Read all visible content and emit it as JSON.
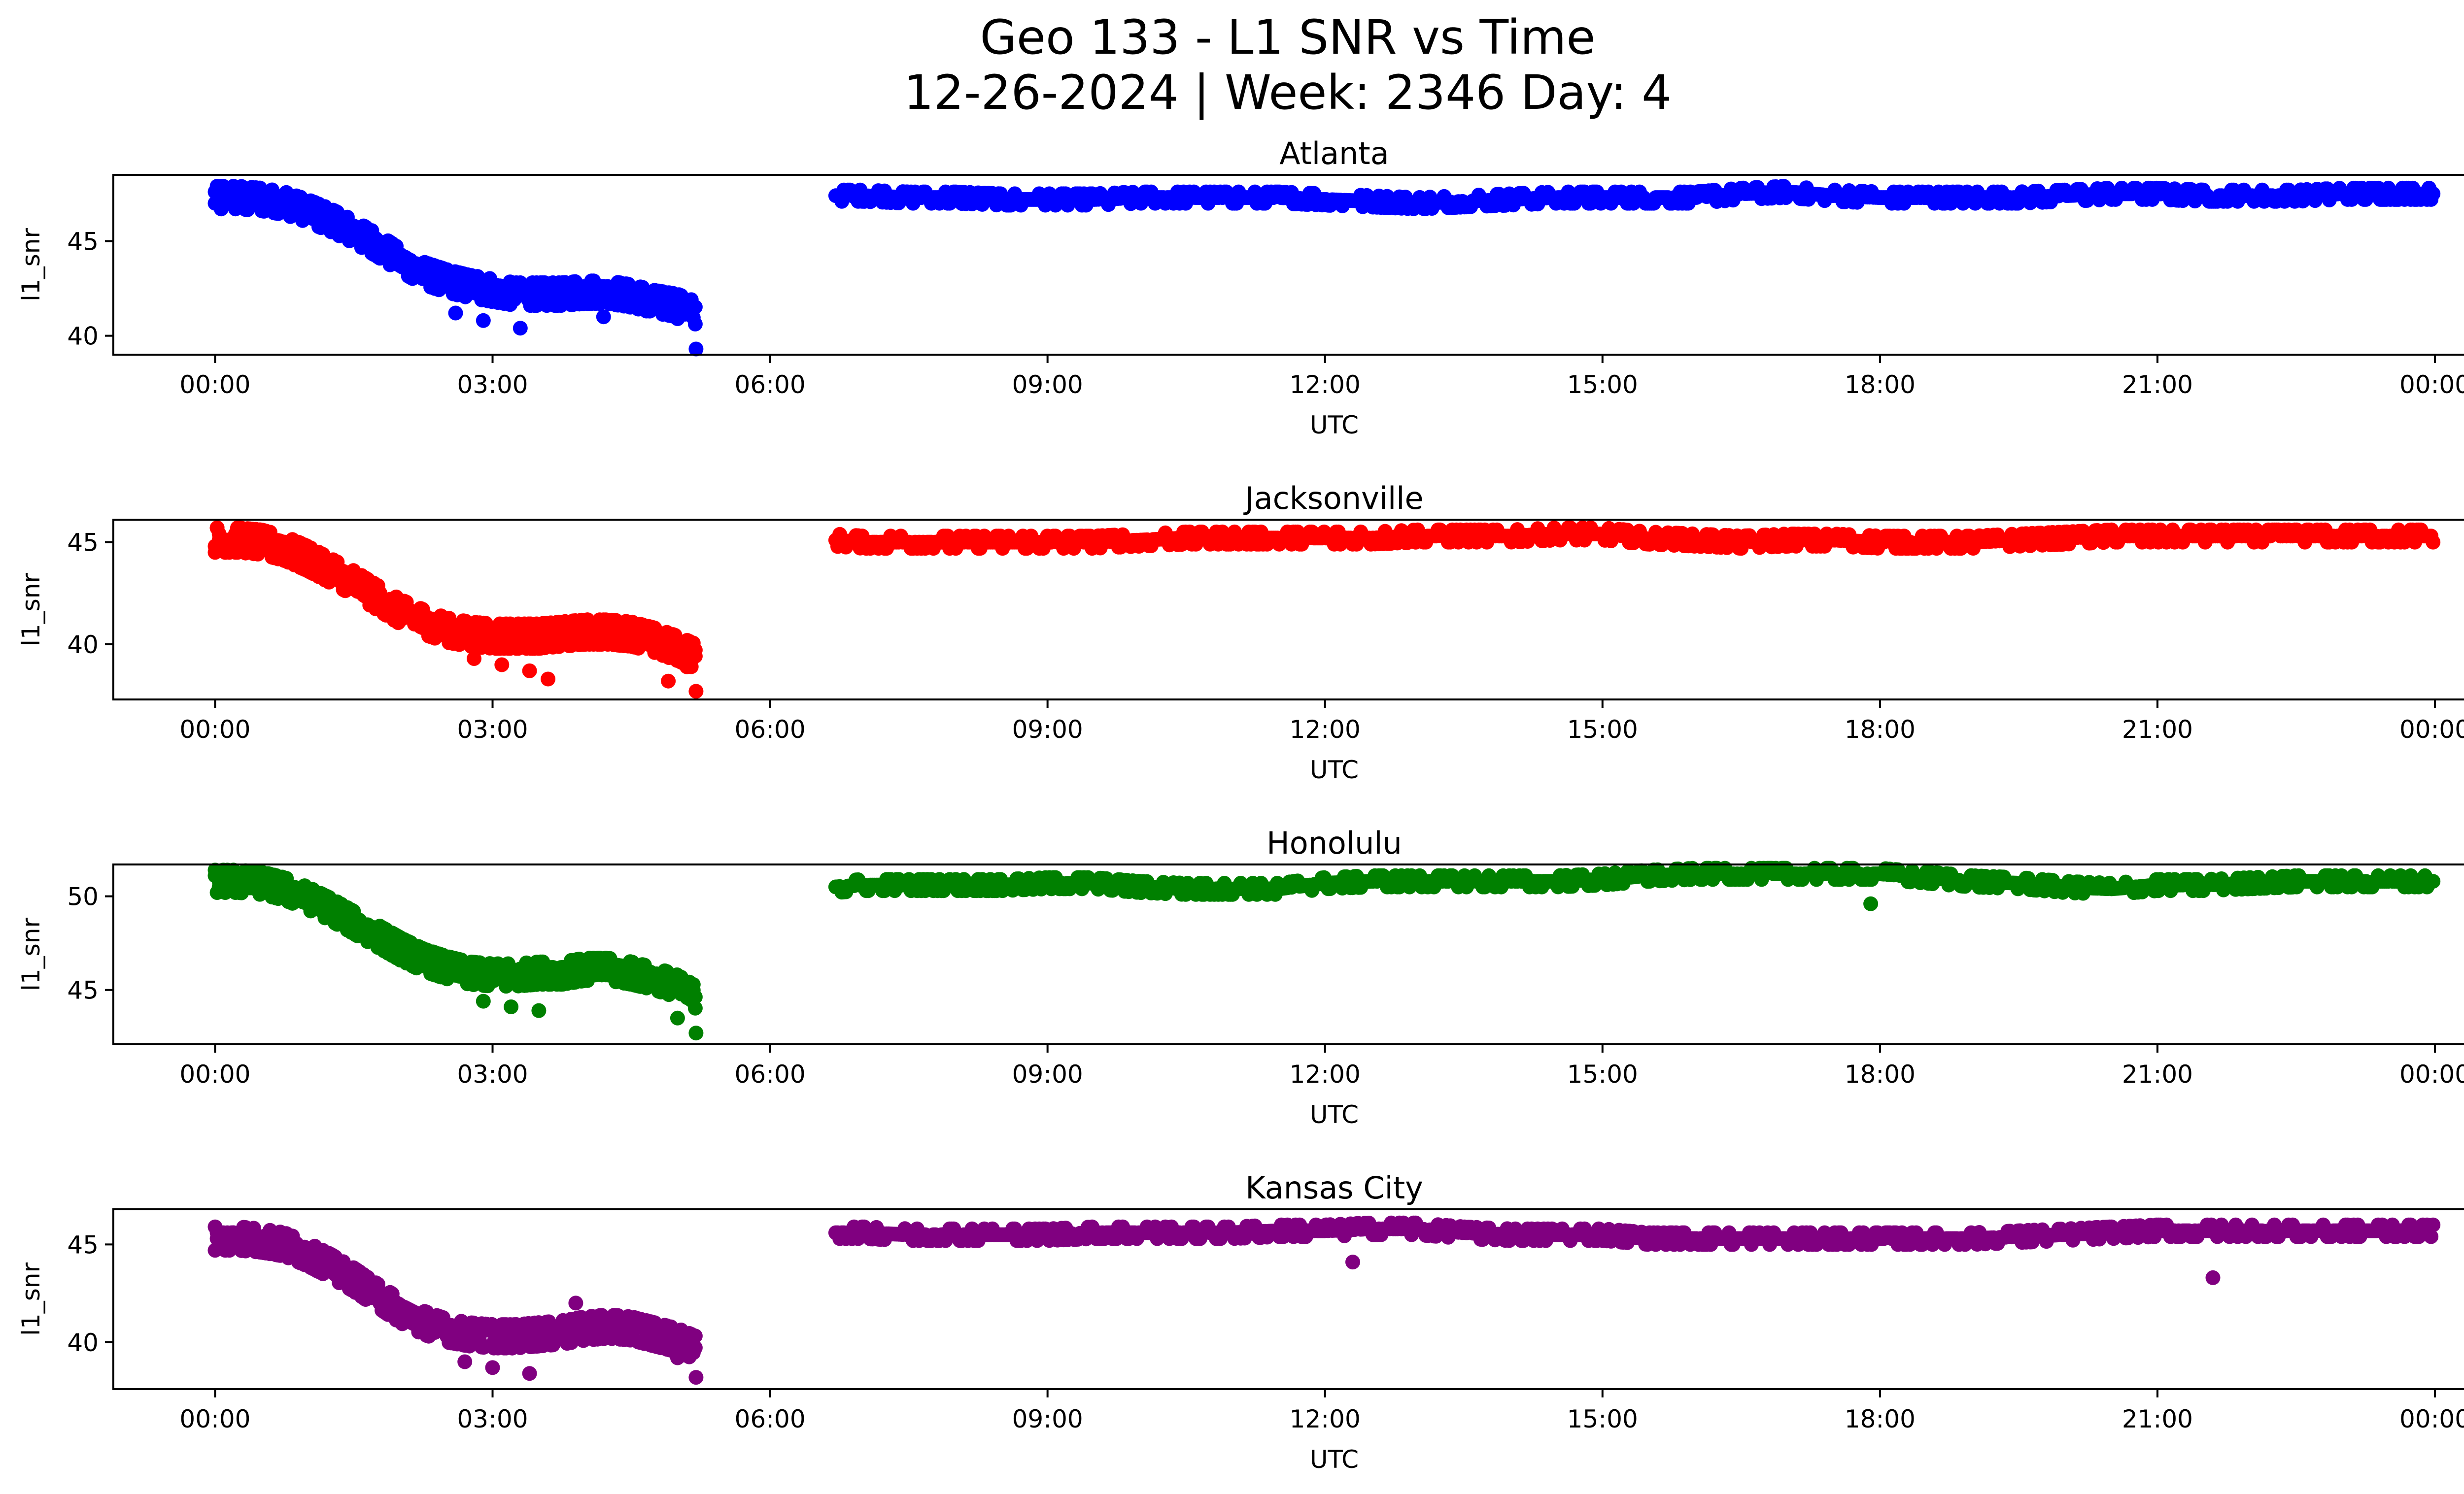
{
  "figure": {
    "title_line1": "Geo 133 - L1 SNR vs Time",
    "title_line2": "12-26-2024 | Week: 2346 Day: 4"
  },
  "chart_data": [
    {
      "type": "scatter",
      "title": "Atlanta",
      "xlabel": "UTC",
      "ylabel": "l1_snr",
      "color": "#0000ff",
      "xticks": [
        "00:00",
        "03:00",
        "06:00",
        "09:00",
        "12:00",
        "15:00",
        "18:00",
        "21:00",
        "00:00"
      ],
      "xlim_hours": [
        -1.1,
        25.3
      ],
      "ylim": [
        39,
        48.5
      ],
      "yticks": [
        40,
        45
      ],
      "series": [
        {
          "x_hours": [
            0,
            0.25,
            0.5,
            0.75,
            1,
            1.25,
            1.5,
            1.75,
            2,
            2.25,
            2.5,
            2.75,
            3,
            3.25,
            3.5,
            3.75,
            4,
            4.25,
            4.5,
            4.75,
            5,
            5.2,
            6.7,
            7,
            7.5,
            8,
            8.5,
            9,
            9.5,
            10,
            10.5,
            11,
            11.5,
            12,
            12.5,
            13,
            13.5,
            14,
            14.5,
            15,
            15.5,
            16,
            16.5,
            17,
            17.5,
            18,
            18.5,
            19,
            19.5,
            20,
            20.5,
            21,
            21.5,
            22,
            22.5,
            23,
            23.5,
            24
          ],
          "y": [
            47.3,
            47.3,
            47.2,
            47.0,
            46.6,
            46.1,
            45.5,
            44.8,
            44.0,
            43.3,
            42.9,
            42.6,
            42.4,
            42.2,
            42.2,
            42.2,
            42.3,
            42.3,
            42.1,
            41.8,
            41.6,
            41.2,
            47.4,
            47.4,
            47.3,
            47.3,
            47.2,
            47.2,
            47.2,
            47.3,
            47.3,
            47.3,
            47.3,
            47.2,
            47.1,
            47.0,
            47.1,
            47.2,
            47.3,
            47.3,
            47.3,
            47.3,
            47.5,
            47.6,
            47.4,
            47.3,
            47.3,
            47.3,
            47.3,
            47.4,
            47.5,
            47.5,
            47.4,
            47.4,
            47.4,
            47.5,
            47.5,
            47.5
          ],
          "outliers_x": [
            2.6,
            2.9,
            3.3,
            4.2,
            4.7,
            5.0,
            5.2
          ],
          "outliers_y": [
            41.2,
            40.8,
            40.4,
            41.0,
            41.3,
            40.9,
            39.3
          ]
        }
      ]
    },
    {
      "type": "scatter",
      "title": "Jacksonville",
      "xlabel": "UTC",
      "ylabel": "l1_snr",
      "color": "#ff0000",
      "xticks": [
        "00:00",
        "03:00",
        "06:00",
        "09:00",
        "12:00",
        "15:00",
        "18:00",
        "21:00",
        "00:00"
      ],
      "xlim_hours": [
        -1.1,
        25.3
      ],
      "ylim": [
        37.3,
        46.1
      ],
      "yticks": [
        40,
        45
      ],
      "series": [
        {
          "x_hours": [
            0,
            0.25,
            0.5,
            0.75,
            1,
            1.25,
            1.5,
            1.75,
            2,
            2.25,
            2.5,
            2.75,
            3,
            3.25,
            3.5,
            3.75,
            4,
            4.25,
            4.5,
            4.75,
            5,
            5.2,
            6.7,
            7,
            7.5,
            8,
            8.5,
            9,
            9.5,
            10,
            10.5,
            11,
            11.5,
            12,
            12.5,
            13,
            13.5,
            14,
            14.5,
            15,
            15.5,
            16,
            16.5,
            17,
            17.5,
            18,
            18.5,
            19,
            19.5,
            20,
            20.5,
            21,
            21.5,
            22,
            22.5,
            23,
            23.5,
            24
          ],
          "y": [
            45.1,
            45.1,
            45.0,
            44.7,
            44.2,
            43.6,
            43.0,
            42.3,
            41.6,
            41.1,
            40.7,
            40.5,
            40.4,
            40.4,
            40.4,
            40.5,
            40.6,
            40.6,
            40.5,
            40.2,
            39.8,
            39.4,
            45.1,
            45.0,
            45.0,
            45.0,
            45.0,
            45.0,
            45.0,
            45.1,
            45.2,
            45.2,
            45.2,
            45.2,
            45.2,
            45.3,
            45.3,
            45.3,
            45.4,
            45.4,
            45.2,
            45.1,
            45.0,
            45.1,
            45.1,
            45.0,
            45.0,
            45.0,
            45.1,
            45.2,
            45.3,
            45.3,
            45.3,
            45.3,
            45.3,
            45.3,
            45.3,
            45.3
          ],
          "outliers_x": [
            2.8,
            3.1,
            3.4,
            3.6,
            4.9,
            5.1,
            5.2
          ],
          "outliers_y": [
            39.3,
            39.0,
            38.7,
            38.3,
            38.2,
            38.9,
            37.7
          ]
        }
      ]
    },
    {
      "type": "scatter",
      "title": "Honolulu",
      "xlabel": "UTC",
      "ylabel": "l1_snr",
      "color": "#008000",
      "xticks": [
        "00:00",
        "03:00",
        "06:00",
        "09:00",
        "12:00",
        "15:00",
        "18:00",
        "21:00",
        "00:00"
      ],
      "xlim_hours": [
        -1.1,
        25.3
      ],
      "ylim": [
        42.1,
        51.7
      ],
      "yticks": [
        45,
        50
      ],
      "series": [
        {
          "x_hours": [
            0,
            0.25,
            0.5,
            0.75,
            1,
            1.25,
            1.5,
            1.75,
            2,
            2.25,
            2.5,
            2.75,
            3,
            3.25,
            3.5,
            3.75,
            4,
            4.25,
            4.5,
            4.75,
            5,
            5.2,
            6.7,
            7,
            7.5,
            8,
            8.5,
            9,
            9.5,
            10,
            10.5,
            11,
            11.5,
            12,
            12.5,
            13,
            13.5,
            14,
            14.5,
            15,
            15.5,
            16,
            16.5,
            17,
            17.5,
            18,
            18.5,
            19,
            19.5,
            20,
            20.5,
            21,
            21.5,
            22,
            22.5,
            23,
            23.5,
            24
          ],
          "y": [
            50.8,
            50.8,
            50.7,
            50.4,
            49.9,
            49.3,
            48.6,
            47.9,
            47.2,
            46.6,
            46.2,
            45.9,
            45.8,
            45.8,
            45.9,
            45.9,
            46.1,
            46.1,
            45.9,
            45.6,
            45.2,
            44.6,
            50.5,
            50.6,
            50.6,
            50.6,
            50.6,
            50.7,
            50.7,
            50.5,
            50.4,
            50.4,
            50.4,
            50.7,
            50.8,
            50.8,
            50.8,
            50.8,
            50.8,
            50.9,
            51.1,
            51.2,
            51.2,
            51.2,
            51.2,
            51.2,
            51.0,
            50.8,
            50.7,
            50.5,
            50.4,
            50.6,
            50.6,
            50.7,
            50.8,
            50.8,
            50.8,
            50.8
          ],
          "outliers_x": [
            2.9,
            3.2,
            3.5,
            5.0,
            5.2,
            17.9
          ],
          "outliers_y": [
            44.4,
            44.1,
            43.9,
            43.5,
            42.7,
            49.6
          ]
        }
      ]
    },
    {
      "type": "scatter",
      "title": "Kansas City",
      "xlabel": "UTC",
      "ylabel": "l1_snr",
      "color": "#800080",
      "xticks": [
        "00:00",
        "03:00",
        "06:00",
        "09:00",
        "12:00",
        "15:00",
        "18:00",
        "21:00",
        "00:00"
      ],
      "xlim_hours": [
        -1.1,
        25.3
      ],
      "ylim": [
        37.6,
        46.8
      ],
      "yticks": [
        40,
        45
      ],
      "series": [
        {
          "x_hours": [
            0,
            0.25,
            0.5,
            0.75,
            1,
            1.25,
            1.5,
            1.75,
            2,
            2.25,
            2.5,
            2.75,
            3,
            3.25,
            3.5,
            3.75,
            4,
            4.25,
            4.5,
            4.75,
            5,
            5.2,
            6.7,
            7,
            7.5,
            8,
            8.5,
            9,
            9.5,
            10,
            10.5,
            11,
            11.5,
            12,
            12.5,
            13,
            13.5,
            14,
            14.5,
            15,
            15.5,
            16,
            16.5,
            17,
            17.5,
            18,
            18.5,
            19,
            19.5,
            20,
            20.5,
            21,
            21.5,
            22,
            22.5,
            23,
            23.5,
            24
          ],
          "y": [
            45.3,
            45.3,
            45.2,
            45.0,
            44.5,
            43.9,
            43.2,
            42.4,
            41.6,
            41.0,
            40.6,
            40.4,
            40.3,
            40.3,
            40.4,
            40.5,
            40.7,
            40.8,
            40.7,
            40.4,
            40.1,
            39.7,
            45.6,
            45.6,
            45.5,
            45.5,
            45.5,
            45.5,
            45.6,
            45.6,
            45.6,
            45.6,
            45.7,
            45.7,
            45.8,
            45.8,
            45.6,
            45.5,
            45.5,
            45.5,
            45.3,
            45.3,
            45.3,
            45.3,
            45.3,
            45.3,
            45.3,
            45.3,
            45.4,
            45.5,
            45.6,
            45.7,
            45.7,
            45.7,
            45.7,
            45.7,
            45.7,
            45.7
          ],
          "outliers_x": [
            2.7,
            3.0,
            3.4,
            3.9,
            5.0,
            5.2,
            12.3,
            21.6
          ],
          "outliers_y": [
            39.0,
            38.7,
            38.4,
            42.0,
            39.2,
            38.2,
            44.1,
            43.3
          ]
        }
      ]
    }
  ]
}
